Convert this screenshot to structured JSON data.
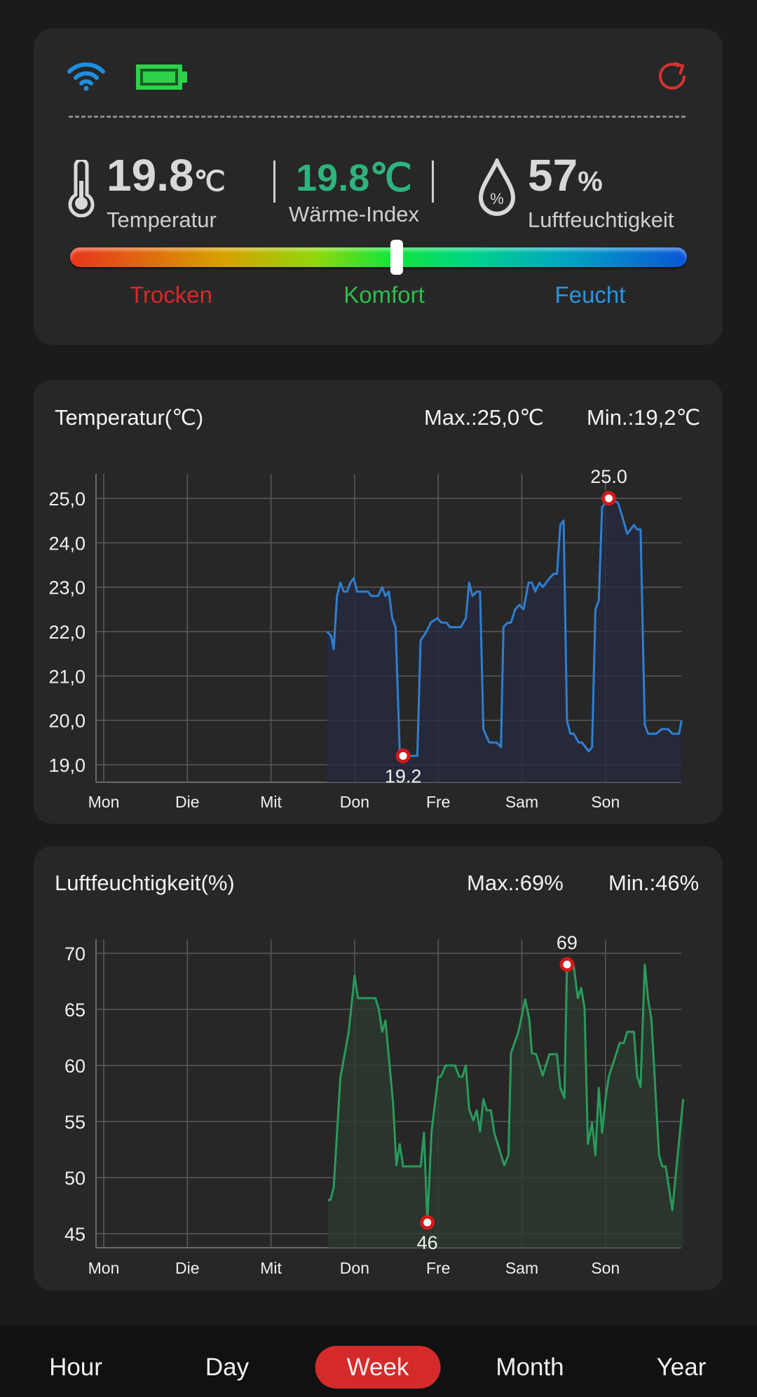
{
  "status": {
    "wifi_icon": "wifi-icon",
    "battery_icon": "battery-full-icon",
    "refresh_icon": "refresh-icon"
  },
  "current": {
    "temperature": {
      "value": "19.8",
      "unit": "℃",
      "label": "Temperatur"
    },
    "heat_index": {
      "value": "19.8℃",
      "label": "Wärme-Index",
      "color": "#2db47c"
    },
    "humidity": {
      "value": "57",
      "unit": "%",
      "label": "Luftfeuchtigkeit"
    },
    "comfort_scale": {
      "position_fraction": 0.53,
      "labels": [
        "Trocken",
        "Komfort",
        "Feucht"
      ],
      "colors": [
        "#d8282c",
        "#2ebd4e",
        "#2c95dc"
      ]
    }
  },
  "chart_data": [
    {
      "type": "line",
      "title": "Temperatur(℃)",
      "max_label": "Max.:25,0℃",
      "min_label": "Min.:19,2℃",
      "categories": [
        "Mon",
        "Die",
        "Mit",
        "Don",
        "Fre",
        "Sam",
        "Son"
      ],
      "yticks": [
        19,
        20,
        21,
        22,
        23,
        24,
        25
      ],
      "ytick_labels": [
        "19,0",
        "20,0",
        "21,0",
        "22,0",
        "23,0",
        "24,0",
        "25,0"
      ],
      "color": "#2f7fd0",
      "fill": "#262a40",
      "max": {
        "x": 6.04,
        "y": 25.0,
        "label": "25.0"
      },
      "min": {
        "x": 3.58,
        "y": 19.2,
        "label": "19.2"
      },
      "points": [
        [
          2.67,
          22.0
        ],
        [
          2.72,
          21.9
        ],
        [
          2.75,
          21.6
        ],
        [
          2.79,
          22.8
        ],
        [
          2.83,
          23.1
        ],
        [
          2.87,
          22.9
        ],
        [
          2.91,
          22.9
        ],
        [
          2.95,
          23.1
        ],
        [
          2.99,
          23.2
        ],
        [
          3.03,
          22.9
        ],
        [
          3.16,
          22.9
        ],
        [
          3.2,
          22.8
        ],
        [
          3.28,
          22.8
        ],
        [
          3.33,
          23.0
        ],
        [
          3.37,
          22.8
        ],
        [
          3.41,
          22.9
        ],
        [
          3.45,
          22.3
        ],
        [
          3.49,
          22.1
        ],
        [
          3.54,
          19.3
        ],
        [
          3.58,
          19.2
        ],
        [
          3.67,
          19.2
        ],
        [
          3.75,
          19.2
        ],
        [
          3.79,
          21.8
        ],
        [
          3.86,
          22.0
        ],
        [
          3.91,
          22.2
        ],
        [
          3.99,
          22.3
        ],
        [
          4.04,
          22.2
        ],
        [
          4.1,
          22.2
        ],
        [
          4.14,
          22.1
        ],
        [
          4.27,
          22.1
        ],
        [
          4.33,
          22.3
        ],
        [
          4.37,
          23.1
        ],
        [
          4.41,
          22.8
        ],
        [
          4.46,
          22.9
        ],
        [
          4.5,
          22.9
        ],
        [
          4.54,
          19.8
        ],
        [
          4.61,
          19.5
        ],
        [
          4.7,
          19.5
        ],
        [
          4.75,
          19.4
        ],
        [
          4.78,
          22.1
        ],
        [
          4.83,
          22.2
        ],
        [
          4.87,
          22.2
        ],
        [
          4.92,
          22.5
        ],
        [
          4.97,
          22.6
        ],
        [
          5.02,
          22.5
        ],
        [
          5.08,
          23.1
        ],
        [
          5.12,
          23.1
        ],
        [
          5.16,
          22.9
        ],
        [
          5.21,
          23.1
        ],
        [
          5.25,
          23.0
        ],
        [
          5.33,
          23.2
        ],
        [
          5.38,
          23.3
        ],
        [
          5.42,
          23.3
        ],
        [
          5.46,
          24.4
        ],
        [
          5.5,
          24.5
        ],
        [
          5.54,
          20.0
        ],
        [
          5.58,
          19.7
        ],
        [
          5.62,
          19.7
        ],
        [
          5.68,
          19.5
        ],
        [
          5.72,
          19.5
        ],
        [
          5.8,
          19.3
        ],
        [
          5.84,
          19.4
        ],
        [
          5.88,
          22.5
        ],
        [
          5.92,
          22.7
        ],
        [
          5.96,
          24.8
        ],
        [
          6.04,
          25.0
        ],
        [
          6.15,
          24.9
        ],
        [
          6.2,
          24.6
        ],
        [
          6.26,
          24.2
        ],
        [
          6.34,
          24.4
        ],
        [
          6.38,
          24.3
        ],
        [
          6.42,
          24.3
        ],
        [
          6.47,
          19.9
        ],
        [
          6.51,
          19.7
        ],
        [
          6.61,
          19.7
        ],
        [
          6.67,
          19.8
        ],
        [
          6.75,
          19.8
        ],
        [
          6.8,
          19.7
        ],
        [
          6.88,
          19.7
        ],
        [
          6.91,
          20.0
        ]
      ]
    },
    {
      "type": "line",
      "title": "Luftfeuchtigkeit(%)",
      "max_label": "Max.:69%",
      "min_label": "Min.:46%",
      "categories": [
        "Mon",
        "Die",
        "Mit",
        "Don",
        "Fre",
        "Sam",
        "Son"
      ],
      "yticks": [
        45,
        50,
        55,
        60,
        65,
        70
      ],
      "ytick_labels": [
        "45",
        "50",
        "55",
        "60",
        "65",
        "70"
      ],
      "color": "#2a9a5c",
      "fill": "#2a3a30",
      "max": {
        "x": 5.54,
        "y": 69,
        "label": "69"
      },
      "min": {
        "x": 3.87,
        "y": 46,
        "label": "46"
      },
      "points": [
        [
          2.68,
          48.0
        ],
        [
          2.71,
          48.0
        ],
        [
          2.75,
          49.1
        ],
        [
          2.83,
          58.9
        ],
        [
          2.93,
          63.0
        ],
        [
          3.0,
          68.0
        ],
        [
          3.04,
          66.0
        ],
        [
          3.25,
          66.0
        ],
        [
          3.29,
          65.0
        ],
        [
          3.33,
          63.0
        ],
        [
          3.37,
          64.0
        ],
        [
          3.46,
          56.6
        ],
        [
          3.5,
          51.1
        ],
        [
          3.54,
          53.0
        ],
        [
          3.58,
          51.0
        ],
        [
          3.79,
          51.0
        ],
        [
          3.83,
          54.0
        ],
        [
          3.87,
          46.0
        ],
        [
          3.92,
          54.1
        ],
        [
          4.0,
          59.0
        ],
        [
          4.03,
          59.0
        ],
        [
          4.09,
          60.0
        ],
        [
          4.2,
          60.0
        ],
        [
          4.25,
          59.0
        ],
        [
          4.29,
          59.0
        ],
        [
          4.33,
          60.0
        ],
        [
          4.37,
          56.1
        ],
        [
          4.42,
          55.1
        ],
        [
          4.46,
          56.0
        ],
        [
          4.5,
          54.1
        ],
        [
          4.54,
          57.0
        ],
        [
          4.58,
          56.0
        ],
        [
          4.63,
          56.0
        ],
        [
          4.67,
          54.0
        ],
        [
          4.79,
          51.1
        ],
        [
          4.84,
          52.0
        ],
        [
          4.87,
          61.1
        ],
        [
          4.96,
          63.0
        ],
        [
          5.04,
          65.9
        ],
        [
          5.09,
          64.1
        ],
        [
          5.12,
          61.1
        ],
        [
          5.17,
          61.0
        ],
        [
          5.25,
          59.1
        ],
        [
          5.33,
          61.0
        ],
        [
          5.42,
          61.0
        ],
        [
          5.46,
          58.0
        ],
        [
          5.51,
          57.1
        ],
        [
          5.54,
          69.0
        ],
        [
          5.62,
          68.9
        ],
        [
          5.67,
          66.0
        ],
        [
          5.71,
          66.9
        ],
        [
          5.75,
          65.1
        ],
        [
          5.79,
          53.0
        ],
        [
          5.84,
          54.9
        ],
        [
          5.88,
          52.0
        ],
        [
          5.92,
          58.0
        ],
        [
          5.96,
          54.0
        ],
        [
          6.0,
          57.0
        ],
        [
          6.04,
          59.0
        ],
        [
          6.17,
          62.0
        ],
        [
          6.22,
          62.0
        ],
        [
          6.26,
          63.0
        ],
        [
          6.34,
          63.0
        ],
        [
          6.38,
          59.0
        ],
        [
          6.42,
          58.1
        ],
        [
          6.47,
          69.0
        ],
        [
          6.51,
          65.9
        ],
        [
          6.55,
          64.1
        ],
        [
          6.64,
          52.0
        ],
        [
          6.68,
          51.0
        ],
        [
          6.72,
          51.0
        ],
        [
          6.8,
          47.1
        ],
        [
          6.93,
          57.0
        ]
      ]
    }
  ],
  "nav": {
    "tabs": [
      "Hour",
      "Day",
      "Week",
      "Month",
      "Year"
    ],
    "active": "Week",
    "accent": "#d42a2a"
  }
}
